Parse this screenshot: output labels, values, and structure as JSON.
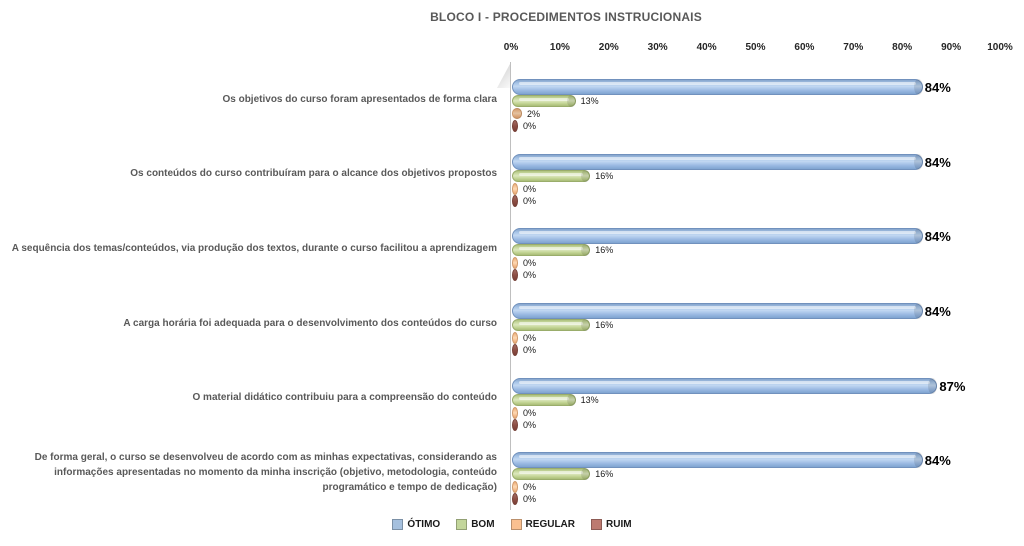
{
  "title": "BLOCO I - PROCEDIMENTOS INSTRUCIONAIS",
  "chart_data": {
    "type": "bar",
    "orientation": "horizontal",
    "title": "BLOCO I - PROCEDIMENTOS INSTRUCIONAIS",
    "categories": [
      "Os objetivos do curso foram apresentados de forma clara",
      "Os conteúdos do curso contribuíram para o alcance dos objetivos propostos",
      "A sequência dos temas/conteúdos, via produção dos textos, durante o curso facilitou a aprendizagem",
      "A carga horária foi adequada para o desenvolvimento dos conteúdos do curso",
      "O material didático contribuiu para a compreensão do conteúdo",
      "De forma geral, o curso se desenvolveu de acordo com as minhas expectativas, considerando as informações apresentadas no momento da minha inscrição (objetivo, metodologia, conteúdo programático e tempo de dedicação)"
    ],
    "series": [
      {
        "name": "ÓTIMO",
        "color": "#9ec3e8",
        "values": [
          84,
          84,
          84,
          84,
          87,
          84
        ]
      },
      {
        "name": "BOM",
        "color": "#c3d69b",
        "values": [
          13,
          16,
          16,
          16,
          13,
          16
        ]
      },
      {
        "name": "REGULAR",
        "color": "#fac090",
        "values": [
          2,
          0,
          0,
          0,
          0,
          0
        ]
      },
      {
        "name": "RUIM",
        "color": "#9c564c",
        "values": [
          0,
          0,
          0,
          0,
          0,
          0
        ]
      }
    ],
    "x_ticks": [
      "0%",
      "10%",
      "20%",
      "30%",
      "40%",
      "50%",
      "60%",
      "70%",
      "80%",
      "90%",
      "100%"
    ],
    "xlim": [
      0,
      100
    ],
    "value_label_format": "percent",
    "grid": false,
    "legend_position": "bottom"
  },
  "legend": {
    "items": [
      {
        "label": "ÓTIMO",
        "color": "#a5c0de"
      },
      {
        "label": "BOM",
        "color": "#c3d69b"
      },
      {
        "label": "REGULAR",
        "color": "#fac090"
      },
      {
        "label": "RUIM",
        "color": "#bd7a70"
      }
    ]
  }
}
